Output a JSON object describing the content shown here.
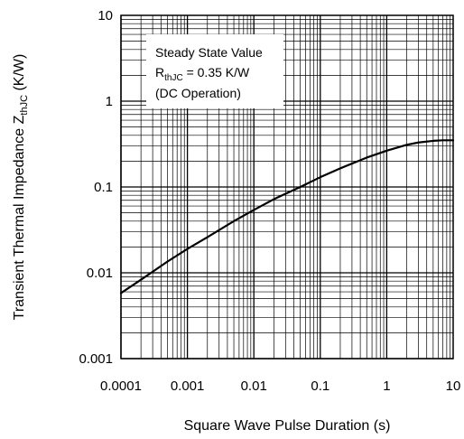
{
  "chart_data": {
    "type": "line",
    "xscale": "log",
    "yscale": "log",
    "xlim": [
      0.0001,
      10
    ],
    "ylim": [
      0.001,
      10
    ],
    "grid": true,
    "xlabel": "Square Wave Pulse Duration (s)",
    "ylabel_main": "Transient Thermal Impedance Z",
    "ylabel_sub": "thJC",
    "ylabel_unit": " (K/W)",
    "x_ticks": [
      {
        "value": 0.0001,
        "label": "0.0001"
      },
      {
        "value": 0.001,
        "label": "0.001"
      },
      {
        "value": 0.01,
        "label": "0.01"
      },
      {
        "value": 0.1,
        "label": "0.1"
      },
      {
        "value": 1,
        "label": "1"
      },
      {
        "value": 10,
        "label": "10"
      }
    ],
    "y_ticks": [
      {
        "value": 0.001,
        "label": "0.001"
      },
      {
        "value": 0.01,
        "label": "0.01"
      },
      {
        "value": 0.1,
        "label": "0.1"
      },
      {
        "value": 1,
        "label": "1"
      },
      {
        "value": 10,
        "label": "10"
      }
    ],
    "annotation": {
      "line1": "Steady State Value",
      "line2_main": "R",
      "line2_sub": "thJC",
      "line2_rest": " = 0.35 K/W",
      "line3": "(DC Operation)"
    },
    "series": [
      {
        "color": "#000000",
        "x": [
          0.0001,
          0.0002,
          0.0005,
          0.001,
          0.002,
          0.005,
          0.01,
          0.02,
          0.05,
          0.1,
          0.2,
          0.5,
          1,
          2,
          3,
          5,
          7,
          10
        ],
        "y": [
          0.0058,
          0.0083,
          0.0135,
          0.019,
          0.026,
          0.04,
          0.054,
          0.072,
          0.1,
          0.13,
          0.165,
          0.22,
          0.265,
          0.31,
          0.33,
          0.345,
          0.35,
          0.35
        ]
      }
    ]
  }
}
